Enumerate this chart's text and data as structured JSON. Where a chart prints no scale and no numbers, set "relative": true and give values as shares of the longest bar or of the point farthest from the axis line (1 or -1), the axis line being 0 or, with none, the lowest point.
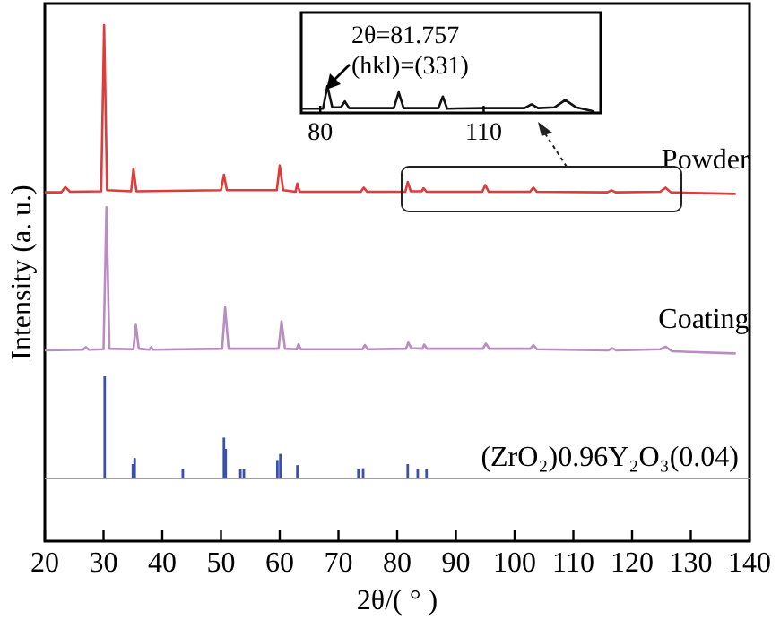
{
  "chart_data": [
    {
      "type": "line",
      "xlabel": "2θ/( ° )",
      "ylabel": "Intensity (a. u.)",
      "relative": true,
      "xlim": [
        20,
        140
      ],
      "xticks": [
        20,
        30,
        40,
        50,
        60,
        70,
        80,
        90,
        100,
        110,
        120,
        130,
        140
      ],
      "tick_labels": "x",
      "series": [
        {
          "name": "Powder",
          "color": "#e03a3a",
          "x": [
            20,
            22.8,
            23.5,
            24.3,
            29.6,
            30.1,
            30.6,
            34.7,
            35.1,
            35.6,
            50.0,
            50.5,
            51.0,
            59.5,
            60.0,
            60.6,
            62.7,
            63.0,
            63.4,
            73.8,
            74.3,
            74.9,
            81.4,
            81.8,
            82.3,
            84.2,
            84.5,
            85,
            94.5,
            95,
            95.6,
            102.6,
            103.2,
            103.8,
            115.8,
            116.5,
            117.2,
            124.8,
            125.7,
            126.6,
            137.5
          ],
          "values": [
            0.676,
            0.676,
            0.686,
            0.677,
            0.678,
            1.0,
            0.68,
            0.678,
            0.722,
            0.678,
            0.68,
            0.71,
            0.68,
            0.68,
            0.728,
            0.68,
            0.677,
            0.693,
            0.677,
            0.677,
            0.685,
            0.677,
            0.677,
            0.696,
            0.678,
            0.678,
            0.684,
            0.677,
            0.677,
            0.69,
            0.677,
            0.677,
            0.685,
            0.677,
            0.676,
            0.68,
            0.676,
            0.677,
            0.685,
            0.676,
            0.673
          ]
        },
        {
          "name": "Coating",
          "color": "#b98cc2",
          "x": [
            20,
            26.5,
            27,
            27.5,
            30.0,
            30.5,
            31.0,
            35.1,
            35.5,
            36.0,
            37.8,
            38.1,
            38.4,
            50.2,
            50.7,
            51.3,
            59.8,
            60.3,
            60.9,
            62.9,
            63.2,
            63.6,
            74.1,
            74.5,
            75,
            81.5,
            81.9,
            82.4,
            84.3,
            84.6,
            85.1,
            94.6,
            95.1,
            95.7,
            102.7,
            103.2,
            103.8,
            116,
            116.6,
            117.3,
            124.8,
            125.7,
            126.8,
            137.5
          ],
          "values": [
            0.37,
            0.371,
            0.376,
            0.371,
            0.372,
            0.647,
            0.373,
            0.372,
            0.419,
            0.373,
            0.371,
            0.376,
            0.371,
            0.373,
            0.453,
            0.373,
            0.373,
            0.426,
            0.373,
            0.372,
            0.382,
            0.372,
            0.372,
            0.38,
            0.372,
            0.373,
            0.385,
            0.374,
            0.373,
            0.381,
            0.373,
            0.373,
            0.383,
            0.373,
            0.373,
            0.38,
            0.372,
            0.37,
            0.374,
            0.37,
            0.372,
            0.377,
            0.368,
            0.364
          ]
        }
      ]
    },
    {
      "type": "line",
      "relative": true,
      "xlim": [
        76.5,
        131.5
      ],
      "xticks": [
        80,
        110
      ],
      "tick_labels": "x",
      "annotations": [
        "2θ=81.757",
        "(hkl)=(331)"
      ],
      "series": [
        {
          "color": "#111111",
          "x": [
            76.5,
            80.5,
            81.3,
            82.2,
            83.8,
            84.5,
            85.3,
            93.5,
            94.4,
            95.3,
            101.7,
            102.5,
            103.3,
            110,
            117.5,
            118.8,
            120,
            123,
            125,
            127,
            130
          ],
          "values": [
            0.1,
            0.1,
            1.0,
            0.15,
            0.15,
            0.39,
            0.12,
            0.12,
            0.75,
            0.12,
            0.12,
            0.58,
            0.1,
            0.12,
            0.12,
            0.27,
            0.12,
            0.15,
            0.44,
            0.15,
            0.0
          ]
        }
      ]
    },
    {
      "type": "bar",
      "relative": true,
      "xlim": [
        20,
        140
      ],
      "series": [
        {
          "name": "(ZrO₂)0.96Y₂O₃(0.04)",
          "color": "#3b50a8",
          "x": [
            30.2,
            35.0,
            35.3,
            43.5,
            50.5,
            50.8,
            53.3,
            53.9,
            59.6,
            60.1,
            63.0,
            73.4,
            74.2,
            81.8,
            83.5,
            85.0
          ],
          "values": [
            1,
            0.14,
            0.2,
            0.09,
            0.4,
            0.29,
            0.09,
            0.09,
            0.18,
            0.24,
            0.13,
            0.09,
            0.1,
            0.14,
            0.09,
            0.09
          ]
        }
      ]
    }
  ]
}
